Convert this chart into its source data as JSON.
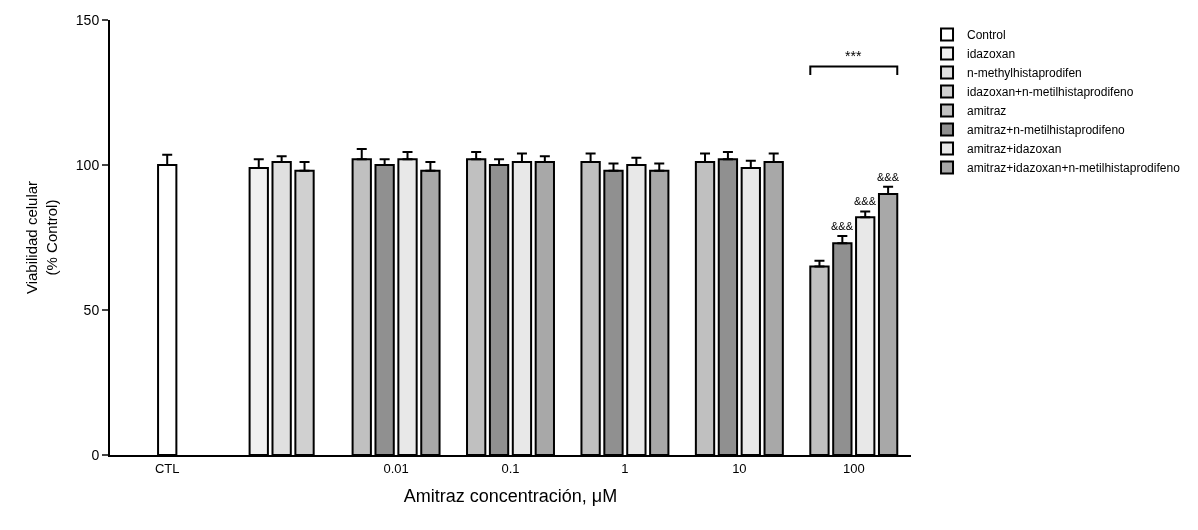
{
  "chart_data": {
    "type": "bar",
    "xlabel": "Amitraz concentración, μM",
    "ylabel": "Viabilidad celular\n(% Control)",
    "categories": [
      "CTL",
      null,
      "0.01",
      "0.1",
      "1",
      "10",
      "100"
    ],
    "series": [
      {
        "name": "Control",
        "color": "#ffffff",
        "values": [
          100,
          null,
          null,
          null,
          null,
          null,
          null
        ],
        "errors": [
          3.5,
          null,
          null,
          null,
          null,
          null,
          null
        ]
      },
      {
        "name": "idazoxan",
        "color": "#f0f0f0",
        "values": [
          null,
          99,
          null,
          null,
          null,
          null,
          null
        ],
        "errors": [
          null,
          3,
          null,
          null,
          null,
          null,
          null
        ]
      },
      {
        "name": "n-methylhistaprodifen",
        "color": "#e0e0e0",
        "values": [
          null,
          101,
          null,
          null,
          null,
          null,
          null
        ],
        "errors": [
          null,
          2,
          null,
          null,
          null,
          null,
          null
        ]
      },
      {
        "name": "idazoxan+n-metilhistaprodifeno",
        "color": "#d0d0d0",
        "values": [
          null,
          98,
          null,
          null,
          null,
          null,
          null
        ],
        "errors": [
          null,
          3,
          null,
          null,
          null,
          null,
          null
        ]
      },
      {
        "name": "amitraz",
        "color": "#c0c0c0",
        "values": [
          null,
          null,
          102,
          102,
          101,
          101,
          65
        ],
        "errors": [
          null,
          null,
          3.5,
          2.5,
          3,
          3,
          2
        ]
      },
      {
        "name": "amitraz+n-metilhistaprodifeno",
        "color": "#909090",
        "values": [
          null,
          null,
          100,
          100,
          98,
          102,
          73
        ],
        "errors": [
          null,
          null,
          2,
          2,
          2.5,
          2.5,
          2.5
        ],
        "value_labels": [
          null,
          null,
          null,
          null,
          null,
          null,
          "&&&"
        ]
      },
      {
        "name": "amitraz+idazoxan",
        "color": "#e8e8e8",
        "values": [
          null,
          null,
          102,
          101,
          100,
          99,
          82
        ],
        "errors": [
          null,
          null,
          2.5,
          3,
          2.5,
          2.5,
          2
        ],
        "value_labels": [
          null,
          null,
          null,
          null,
          null,
          null,
          "&&&"
        ]
      },
      {
        "name": "amitraz+idazoxan+n-metilhistaprodifeno",
        "color": "#a8a8a8",
        "values": [
          null,
          null,
          98,
          101,
          98,
          101,
          90
        ],
        "errors": [
          null,
          null,
          3,
          2,
          2.5,
          3,
          2.5
        ],
        "value_labels": [
          null,
          null,
          null,
          null,
          null,
          null,
          "&&&"
        ]
      }
    ],
    "annotations": [
      "***"
    ],
    "ylim": [
      0,
      150
    ],
    "yticks": [
      0,
      50,
      100,
      150
    ],
    "legend": "top right"
  }
}
